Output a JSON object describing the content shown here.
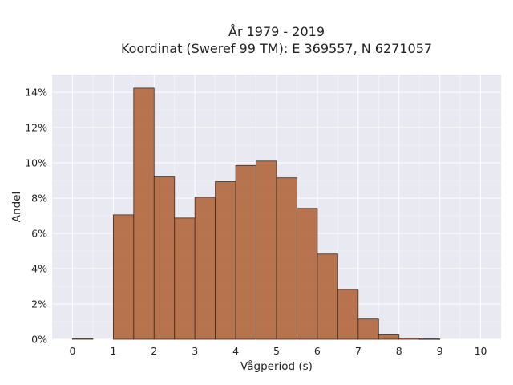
{
  "chart_data": {
    "type": "bar",
    "title_lines": [
      "År 1979 - 2019",
      "Koordinat (Sweref 99 TM): E 369557, N 6271057"
    ],
    "xlabel": "Vågperiod (s)",
    "ylabel": "Andel",
    "xlim": [
      -0.5,
      10.5
    ],
    "ylim": [
      0,
      0.15
    ],
    "x_ticks": [
      0,
      1,
      2,
      3,
      4,
      5,
      6,
      7,
      8,
      9,
      10
    ],
    "x_tick_labels": [
      "0",
      "1",
      "2",
      "3",
      "4",
      "5",
      "6",
      "7",
      "8",
      "9",
      "10"
    ],
    "y_ticks": [
      0,
      0.02,
      0.04,
      0.06,
      0.08,
      0.1,
      0.12,
      0.14
    ],
    "y_tick_labels": [
      "0%",
      "2%",
      "4%",
      "6%",
      "8%",
      "10%",
      "12%",
      "14%"
    ],
    "bin_width": 0.5,
    "bins": [
      {
        "start": 0.0,
        "value": 0.0005
      },
      {
        "start": 0.5,
        "value": 0.0
      },
      {
        "start": 1.0,
        "value": 0.0705
      },
      {
        "start": 1.5,
        "value": 0.1423
      },
      {
        "start": 2.0,
        "value": 0.092
      },
      {
        "start": 2.5,
        "value": 0.0687
      },
      {
        "start": 3.0,
        "value": 0.0805
      },
      {
        "start": 3.5,
        "value": 0.0893
      },
      {
        "start": 4.0,
        "value": 0.0985
      },
      {
        "start": 4.5,
        "value": 0.101
      },
      {
        "start": 5.0,
        "value": 0.0915
      },
      {
        "start": 5.5,
        "value": 0.0742
      },
      {
        "start": 6.0,
        "value": 0.0483
      },
      {
        "start": 6.5,
        "value": 0.0283
      },
      {
        "start": 7.0,
        "value": 0.0115
      },
      {
        "start": 7.5,
        "value": 0.0025
      },
      {
        "start": 8.0,
        "value": 0.0007
      },
      {
        "start": 8.5,
        "value": 0.0002
      }
    ],
    "grid": true,
    "colors": {
      "bar": "#b46d45",
      "bar_edge": "#3a2a20",
      "plot_bg": "#e9e9f1",
      "grid": "#ffffff"
    }
  }
}
